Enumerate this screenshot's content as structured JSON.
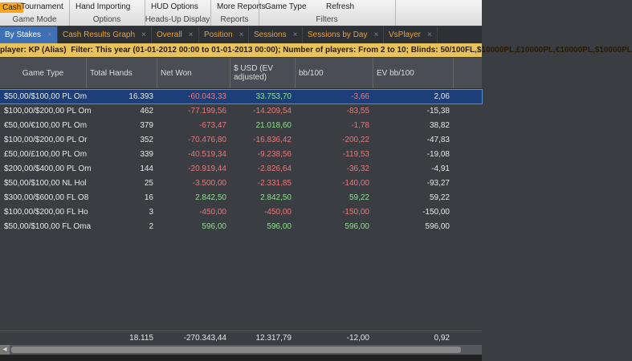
{
  "ribbon": {
    "groups": [
      {
        "items": [
          "Cash",
          "Tournament"
        ],
        "label": "Game Mode"
      },
      {
        "items": [
          "Hand Importing"
        ],
        "label": "Options"
      },
      {
        "items": [
          "HUD Options"
        ],
        "label": "Heads-Up Display"
      },
      {
        "items": [
          "More Reports"
        ],
        "label": "Reports"
      },
      {
        "items": [
          "Game Type",
          "Refresh"
        ],
        "label": "Filters"
      }
    ]
  },
  "tabs": [
    "By Stakes",
    "Cash Results Graph",
    "Overall",
    "Position",
    "Sessions",
    "Sessions by Day",
    "VsPlayer"
  ],
  "filter": {
    "player": "player: KP (Alias)",
    "text": "Filter: This year (01-01-2012 00:00 to 01-01-2013 00:00); Number of players: From 2 to 10; Blinds: 50/100FL,$10000PL,£10000PL,€10000PL,$10000PL"
  },
  "table": {
    "columns": [
      {
        "label": "Game Type",
        "colored": false
      },
      {
        "label": "Total Hands",
        "colored": false
      },
      {
        "label": "Net Won",
        "colored": true
      },
      {
        "label": "$ USD (EV adjusted)",
        "colored": true
      },
      {
        "label": "bb/100",
        "colored": true
      },
      {
        "label": "EV bb/100",
        "colored": false
      }
    ],
    "rows": [
      [
        "$50,00/$100,00 PL Om",
        "16.393",
        "-60.043,33",
        "33.753,70",
        "-3,66",
        "2,06"
      ],
      [
        "$100,00/$200,00 PL Om",
        "462",
        "-77.199,56",
        "-14.209,54",
        "-83,55",
        "-15,38"
      ],
      [
        "€50,00/€100,00 PL Om",
        "379",
        "-673,47",
        "21.018,60",
        "-1,78",
        "38,82"
      ],
      [
        "$100,00/$200,00 PL Or",
        "352",
        "-70.476,80",
        "-16.836,42",
        "-200,22",
        "-47,83"
      ],
      [
        "£50,00/£100,00 PL Om",
        "339",
        "-40.519,34",
        "-9.238,56",
        "-119,53",
        "-19,08"
      ],
      [
        "$200,00/$400,00 PL Om",
        "144",
        "-20.919,44",
        "-2.826,64",
        "-36,32",
        "-4,91"
      ],
      [
        "$50,00/$100,00 NL Hol",
        "25",
        "-3.500,00",
        "-2.331,85",
        "-140,00",
        "-93,27"
      ],
      [
        "$300,00/$600,00 FL O8",
        "16",
        "2.842,50",
        "2.842,50",
        "59,22",
        "59,22"
      ],
      [
        "$100,00/$200,00 FL Ho",
        "3",
        "-450,00",
        "-450,00",
        "-150,00",
        "-150,00"
      ],
      [
        "$50,00/$100,00 FL Oma",
        "2",
        "596,00",
        "596,00",
        "596,00",
        "596,00"
      ]
    ],
    "totals": [
      "18.115",
      "-270.343,44",
      "12.317,79",
      "-12,00",
      "0,92"
    ]
  }
}
